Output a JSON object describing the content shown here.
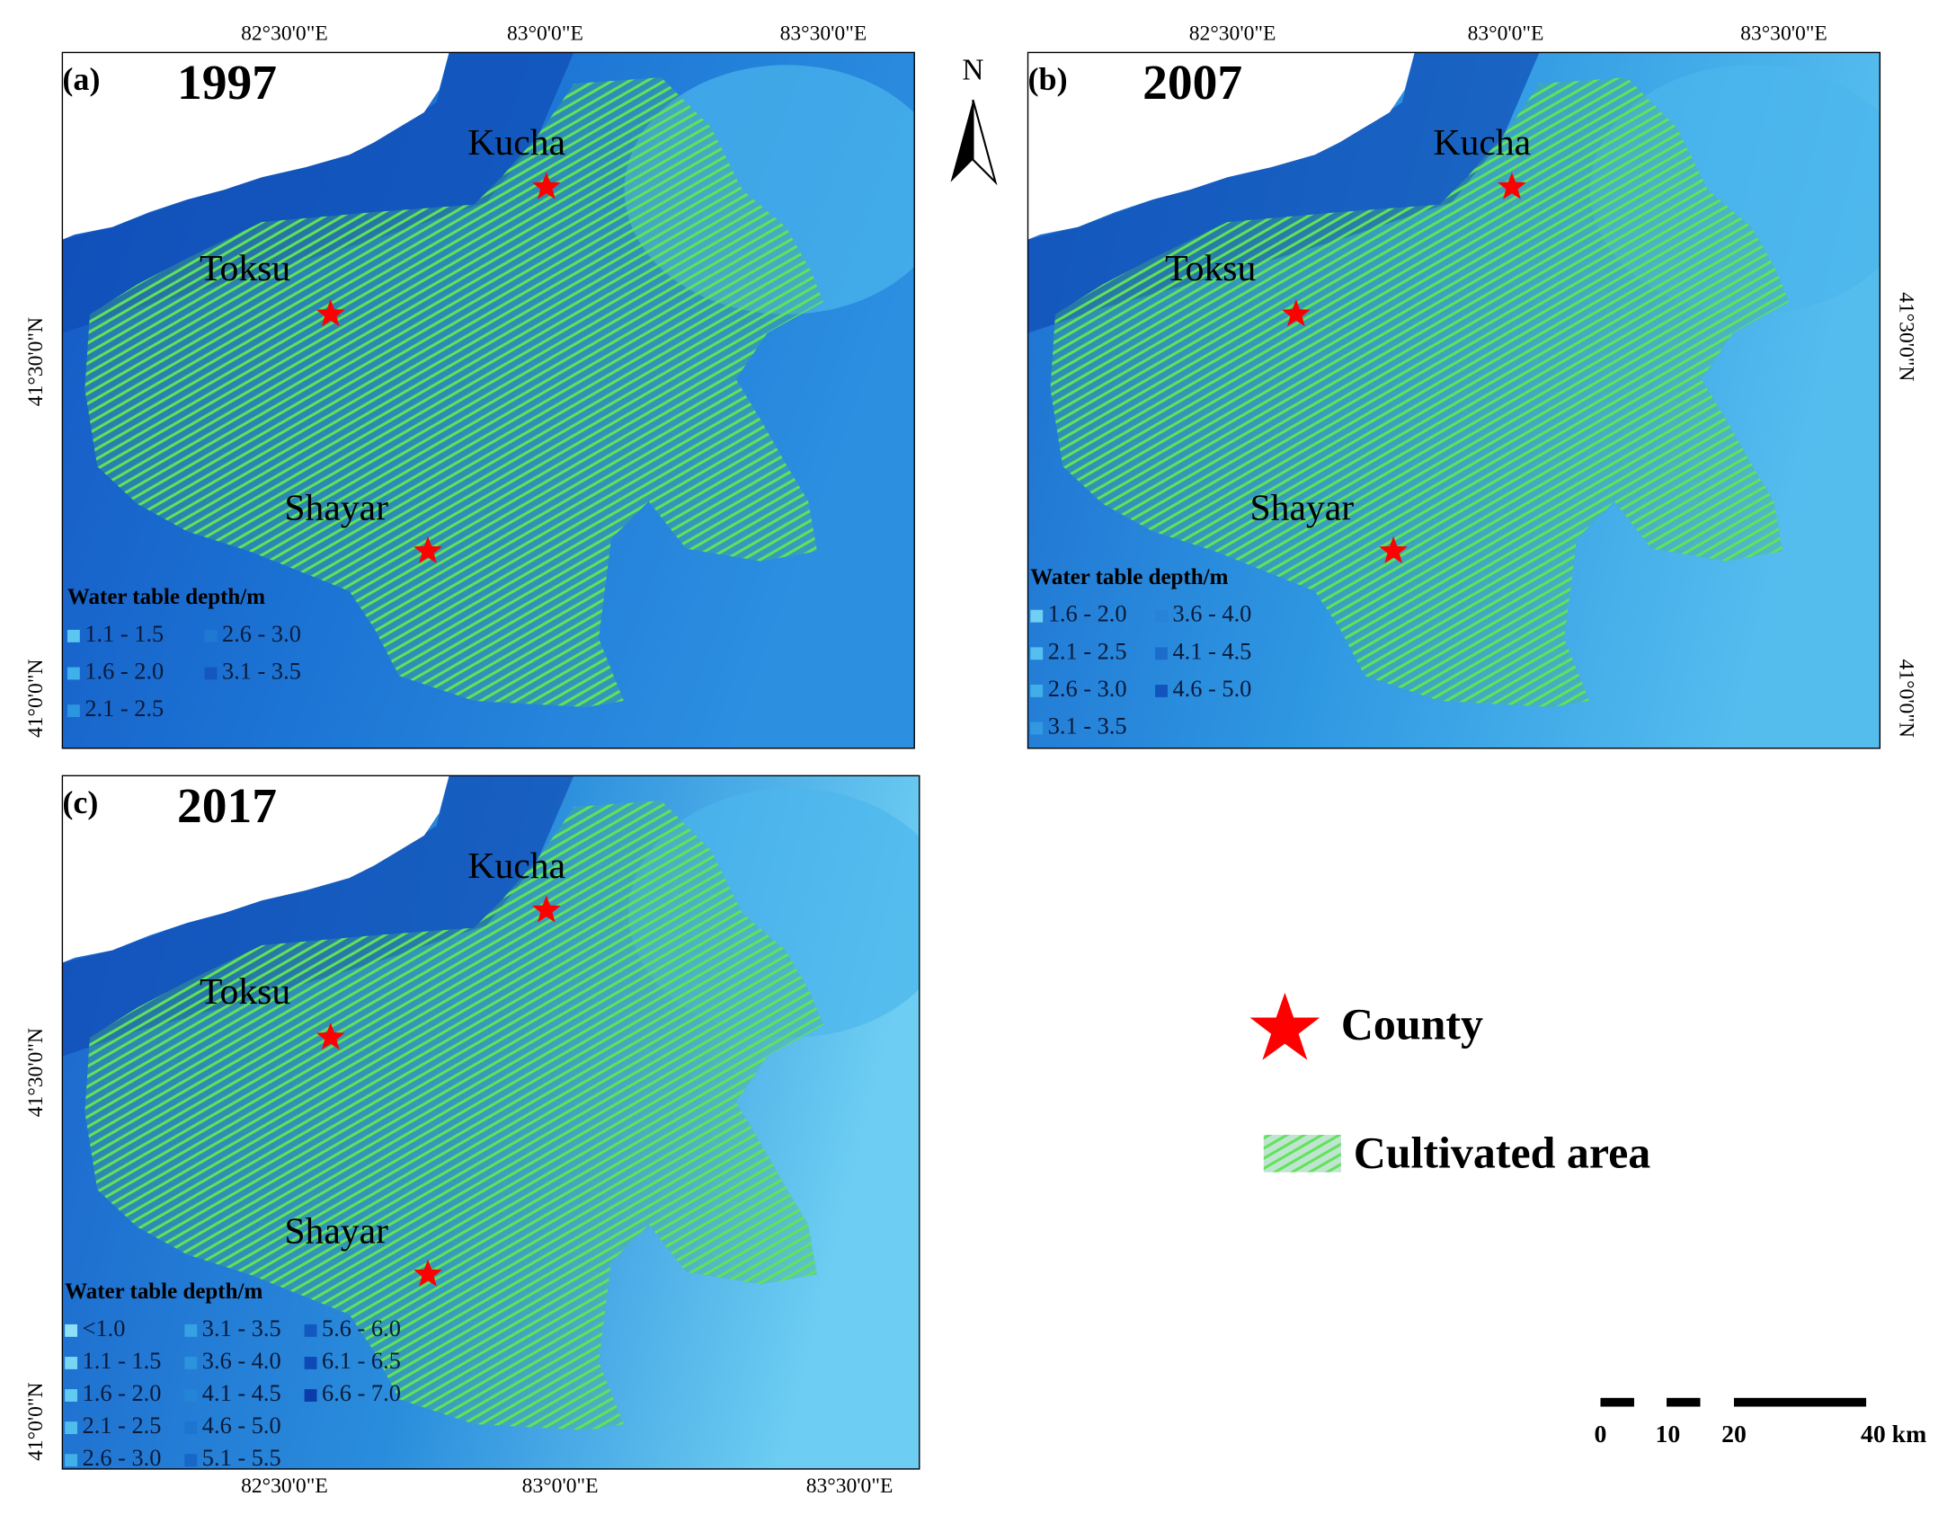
{
  "panels": [
    {
      "label": "(a)",
      "year": "1997",
      "lon_labels": [
        "82°30'0\"E",
        "83°0'0\"E",
        "83°30'0\"E"
      ],
      "lat_labels": [
        "41°30'0\"N",
        "41°0'0\"N"
      ],
      "cities": [
        "Kucha",
        "Toksu",
        "Shayar"
      ],
      "legend_title": "Water table depth/m",
      "legend_items": [
        {
          "label": "1.1 - 1.5",
          "color": "#5cc6f0"
        },
        {
          "label": "1.6 - 2.0",
          "color": "#3fb0ea"
        },
        {
          "label": "2.1 - 2.5",
          "color": "#2c95e0"
        },
        {
          "label": "2.6 - 3.0",
          "color": "#1f78d2"
        },
        {
          "label": "3.1 - 3.5",
          "color": "#1457bd"
        }
      ]
    },
    {
      "label": "(b)",
      "year": "2007",
      "lon_labels": [
        "82°30'0\"E",
        "83°0'0\"E",
        "83°30'0\"E"
      ],
      "lat_labels": [
        "41°30'0\"N",
        "41°0'0\"N"
      ],
      "cities": [
        "Kucha",
        "Toksu",
        "Shayar"
      ],
      "legend_title": "Water table depth/m",
      "legend_items": [
        {
          "label": "1.6 - 2.0",
          "color": "#6fd0f3"
        },
        {
          "label": "2.1 - 2.5",
          "color": "#55c0ee"
        },
        {
          "label": "2.6 - 3.0",
          "color": "#42aee8"
        },
        {
          "label": "3.1 - 3.5",
          "color": "#3299e0"
        },
        {
          "label": "3.6 - 4.0",
          "color": "#2683d6"
        },
        {
          "label": "4.1 - 4.5",
          "color": "#1b6ccb"
        },
        {
          "label": "4.6 - 5.0",
          "color": "#1254bc"
        }
      ]
    },
    {
      "label": "(c)",
      "year": "2017",
      "lon_labels": [
        "82°30'0\"E",
        "83°0'0\"E",
        "83°30'0\"E"
      ],
      "lat_labels": [
        "41°30'0\"N",
        "41°0'0\"N"
      ],
      "cities": [
        "Kucha",
        "Toksu",
        "Shayar"
      ],
      "legend_title": "Water table depth/m",
      "legend_items": [
        {
          "label": "<1.0",
          "color": "#8ee0f7"
        },
        {
          "label": "1.1 - 1.5",
          "color": "#78d5f4"
        },
        {
          "label": "1.6 - 2.0",
          "color": "#62c9f0"
        },
        {
          "label": "2.1 - 2.5",
          "color": "#50bdec"
        },
        {
          "label": "2.6 - 3.0",
          "color": "#42b0e8"
        },
        {
          "label": "3.1 - 3.5",
          "color": "#36a2e3"
        },
        {
          "label": "3.6 - 4.0",
          "color": "#2c93dd"
        },
        {
          "label": "4.1 - 4.5",
          "color": "#2484d6"
        },
        {
          "label": "4.6 - 5.0",
          "color": "#1d75cf"
        },
        {
          "label": "5.1 - 5.5",
          "color": "#1766c8"
        },
        {
          "label": "5.6 - 6.0",
          "color": "#1258bf"
        },
        {
          "label": "6.1 - 6.5",
          "color": "#0e4ab5"
        },
        {
          "label": "6.6 - 7.0",
          "color": "#0a3da9"
        }
      ]
    }
  ],
  "north_label": "N",
  "legend": {
    "county": "County",
    "cultivated": "Cultivated area"
  },
  "scale_bar": [
    "0",
    "10",
    "20",
    "40 km"
  ]
}
